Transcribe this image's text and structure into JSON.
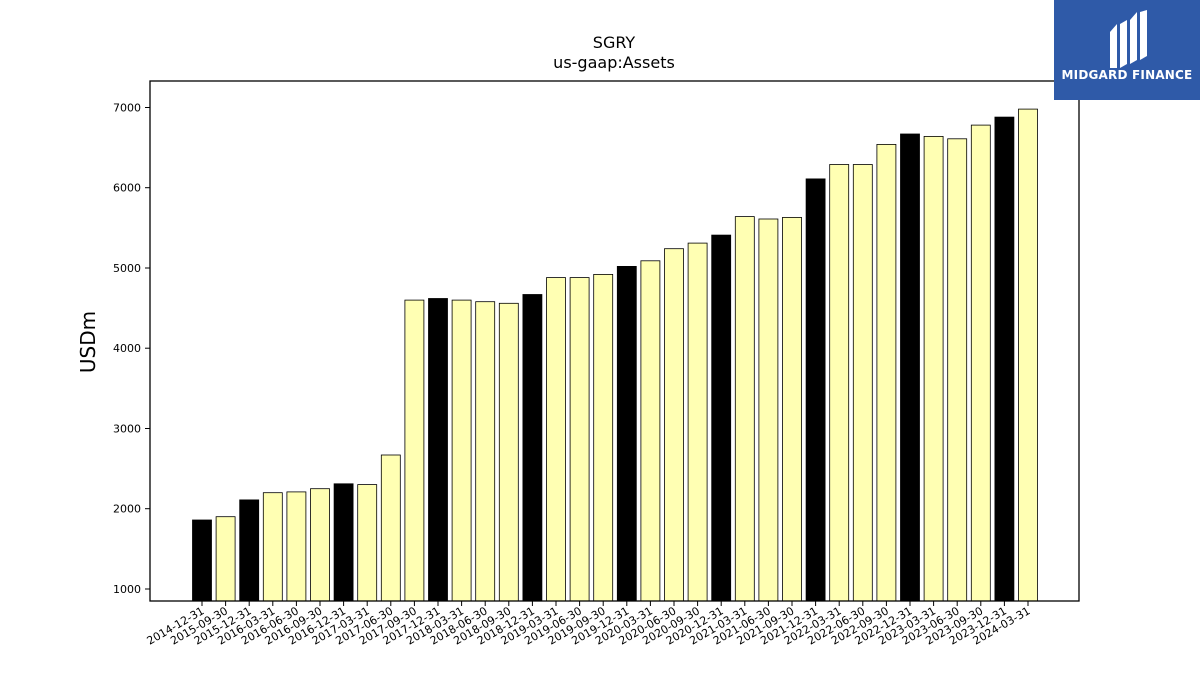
{
  "chart_data": {
    "type": "bar",
    "title": "SGRY",
    "subtitle": "us-gaap:Assets",
    "xlabel": "",
    "ylabel": "USDm",
    "ylim": [
      850,
      7330
    ],
    "yticks": [
      1000,
      2000,
      3000,
      4000,
      5000,
      6000,
      7000
    ],
    "grid": false,
    "categories": [
      "2014-12-31",
      "2015-09-30",
      "2015-12-31",
      "2016-03-31",
      "2016-06-30",
      "2016-09-30",
      "2016-12-31",
      "2017-03-31",
      "2017-06-30",
      "2017-09-30",
      "2017-12-31",
      "2018-03-31",
      "2018-06-30",
      "2018-09-30",
      "2018-12-31",
      "2019-03-31",
      "2019-06-30",
      "2019-09-30",
      "2019-12-31",
      "2020-03-31",
      "2020-06-30",
      "2020-09-30",
      "2020-12-31",
      "2021-03-31",
      "2021-06-30",
      "2021-09-30",
      "2021-12-31",
      "2022-03-31",
      "2022-06-30",
      "2022-09-30",
      "2022-12-31",
      "2023-03-31",
      "2023-06-30",
      "2023-09-30",
      "2023-12-31",
      "2024-03-31"
    ],
    "values": [
      1860,
      1900,
      2110,
      2200,
      2210,
      2250,
      2310,
      2300,
      2670,
      4600,
      4620,
      4600,
      4580,
      4560,
      4670,
      4880,
      4880,
      4920,
      5020,
      5090,
      5240,
      5310,
      5410,
      5640,
      5610,
      5630,
      6110,
      6290,
      6290,
      6540,
      6670,
      6640,
      6610,
      6780,
      6880,
      6980
    ],
    "highlight": [
      true,
      false,
      true,
      false,
      false,
      false,
      true,
      false,
      false,
      false,
      true,
      false,
      false,
      false,
      true,
      false,
      false,
      false,
      true,
      false,
      false,
      false,
      true,
      false,
      false,
      false,
      true,
      false,
      false,
      false,
      true,
      false,
      false,
      false,
      true,
      false
    ],
    "colors": {
      "highlight": "#000000",
      "normal": "#ffffb3",
      "edge": "#000000"
    }
  },
  "logo": {
    "text": "MIDGARD FINANCE",
    "background": "#2f5aa8"
  }
}
